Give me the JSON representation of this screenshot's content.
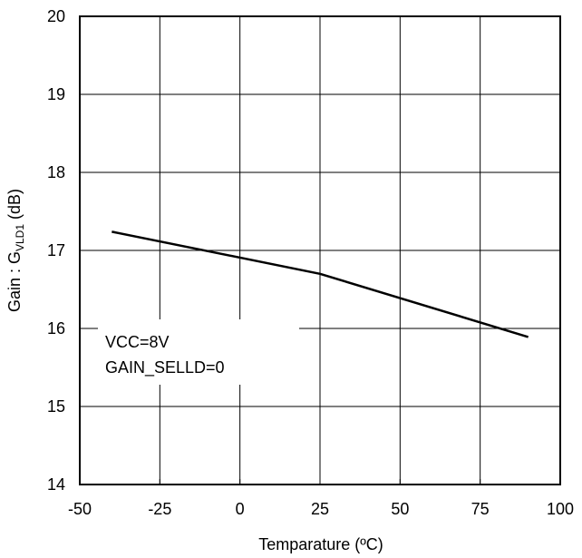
{
  "chart_data": {
    "type": "line",
    "xlabel": "Temparature (ºC)",
    "ylabel": {
      "prefix": "Gain : G",
      "subscript": "VLD1",
      "suffix": " (dB)"
    },
    "xlim": [
      -50,
      100
    ],
    "ylim": [
      14,
      20
    ],
    "xticks": [
      -50,
      -25,
      0,
      25,
      50,
      75,
      100
    ],
    "yticks": [
      14,
      15,
      16,
      17,
      18,
      19,
      20
    ],
    "grid": true,
    "annotations": [
      "VCC=8V",
      "GAIN_SELLD=0"
    ],
    "series": [
      {
        "x": [
          -40,
          25,
          90
        ],
        "y": [
          17.24,
          16.7,
          15.89
        ]
      }
    ]
  }
}
